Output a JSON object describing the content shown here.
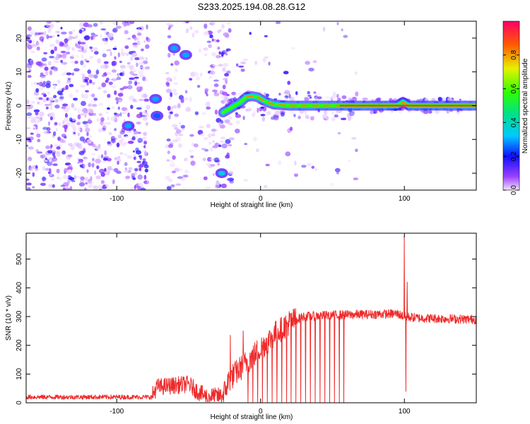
{
  "title": "S233.2025.194.08.28.G12",
  "colors": {
    "snr_line": "#ee2a2a",
    "axis": "#000000"
  },
  "chart_data": [
    {
      "type": "heatmap",
      "xlabel": "Height of straight line (km)",
      "ylabel": "Frequency (Hz)",
      "xlim": [
        -163,
        150
      ],
      "ylim": [
        -25,
        25
      ],
      "xticks": [
        {
          "v": -100,
          "label": "-100"
        },
        {
          "v": 0,
          "label": "0"
        },
        {
          "v": 100,
          "label": "100"
        }
      ],
      "yticks": [
        {
          "v": -20,
          "label": "-20"
        },
        {
          "v": -10,
          "label": "-10"
        },
        {
          "v": 0,
          "label": "0"
        },
        {
          "v": 10,
          "label": "10"
        },
        {
          "v": 20,
          "label": "20"
        }
      ],
      "colorbar": {
        "label": "Normalized spectral amplitude",
        "range": [
          0,
          1
        ],
        "ticks": [
          {
            "v": 0.0,
            "label": "0.0"
          },
          {
            "v": 0.2,
            "label": "0.2"
          },
          {
            "v": 0.4,
            "label": "0.4"
          },
          {
            "v": 0.6,
            "label": "0.6"
          },
          {
            "v": 0.8,
            "label": "0.8"
          }
        ]
      },
      "signal_track": [
        {
          "x": -26,
          "f": -2
        },
        {
          "x": -22,
          "f": -1
        },
        {
          "x": -18,
          "f": 0
        },
        {
          "x": -14,
          "f": 1
        },
        {
          "x": -10,
          "f": 2.5
        },
        {
          "x": -6,
          "f": 2.8
        },
        {
          "x": -2,
          "f": 2.5
        },
        {
          "x": 2,
          "f": 1.5
        },
        {
          "x": 6,
          "f": 0.8
        },
        {
          "x": 10,
          "f": 0.3
        },
        {
          "x": 20,
          "f": 0
        },
        {
          "x": 60,
          "f": 0
        },
        {
          "x": 95,
          "f": 0
        },
        {
          "x": 99,
          "f": 1
        },
        {
          "x": 103,
          "f": 0
        },
        {
          "x": 150,
          "f": 0
        }
      ],
      "hotspots": [
        {
          "x": -60,
          "f": 17,
          "a": 0.3
        },
        {
          "x": -52,
          "f": 15,
          "a": 0.3
        },
        {
          "x": -73,
          "f": 2,
          "a": 0.3
        },
        {
          "x": -92,
          "f": -6,
          "a": 0.3
        },
        {
          "x": -27,
          "f": -20,
          "a": 0.35
        },
        {
          "x": -72,
          "f": -3,
          "a": 0.25
        },
        {
          "x": 99,
          "f": 1,
          "a": 0.35
        }
      ]
    },
    {
      "type": "line",
      "xlabel": "Height of straight line (km)",
      "ylabel": "SNR (10 * v/v)",
      "xlim": [
        -163,
        150
      ],
      "ylim": [
        0,
        590
      ],
      "xticks": [
        {
          "v": -100,
          "label": "-100"
        },
        {
          "v": 0,
          "label": "0"
        },
        {
          "v": 100,
          "label": "100"
        }
      ],
      "yticks": [
        {
          "v": 0,
          "label": "0"
        },
        {
          "v": 100,
          "label": "100"
        },
        {
          "v": 200,
          "label": "200"
        },
        {
          "v": 300,
          "label": "300"
        },
        {
          "v": 400,
          "label": "400"
        },
        {
          "v": 500,
          "label": "500"
        }
      ],
      "trend": [
        {
          "x": -163,
          "y": 20
        },
        {
          "x": -76,
          "y": 20
        },
        {
          "x": -72,
          "y": 55
        },
        {
          "x": -50,
          "y": 65
        },
        {
          "x": -44,
          "y": 40
        },
        {
          "x": -38,
          "y": 22
        },
        {
          "x": -26,
          "y": 24
        },
        {
          "x": -22,
          "y": 80
        },
        {
          "x": -10,
          "y": 140
        },
        {
          "x": 0,
          "y": 190
        },
        {
          "x": 10,
          "y": 240
        },
        {
          "x": 20,
          "y": 280
        },
        {
          "x": 30,
          "y": 300
        },
        {
          "x": 50,
          "y": 305
        },
        {
          "x": 95,
          "y": 310
        },
        {
          "x": 100,
          "y": 300
        },
        {
          "x": 110,
          "y": 295
        },
        {
          "x": 150,
          "y": 290
        }
      ],
      "spikes": [
        {
          "x": 100,
          "y": 580
        },
        {
          "x": 101,
          "y": 40
        },
        {
          "x": 102,
          "y": 420
        },
        {
          "x": -21,
          "y": 235
        },
        {
          "x": -12,
          "y": 250
        }
      ],
      "dropouts": {
        "x_start": -12,
        "x_end": 58,
        "count": 22,
        "y": 2
      }
    }
  ]
}
